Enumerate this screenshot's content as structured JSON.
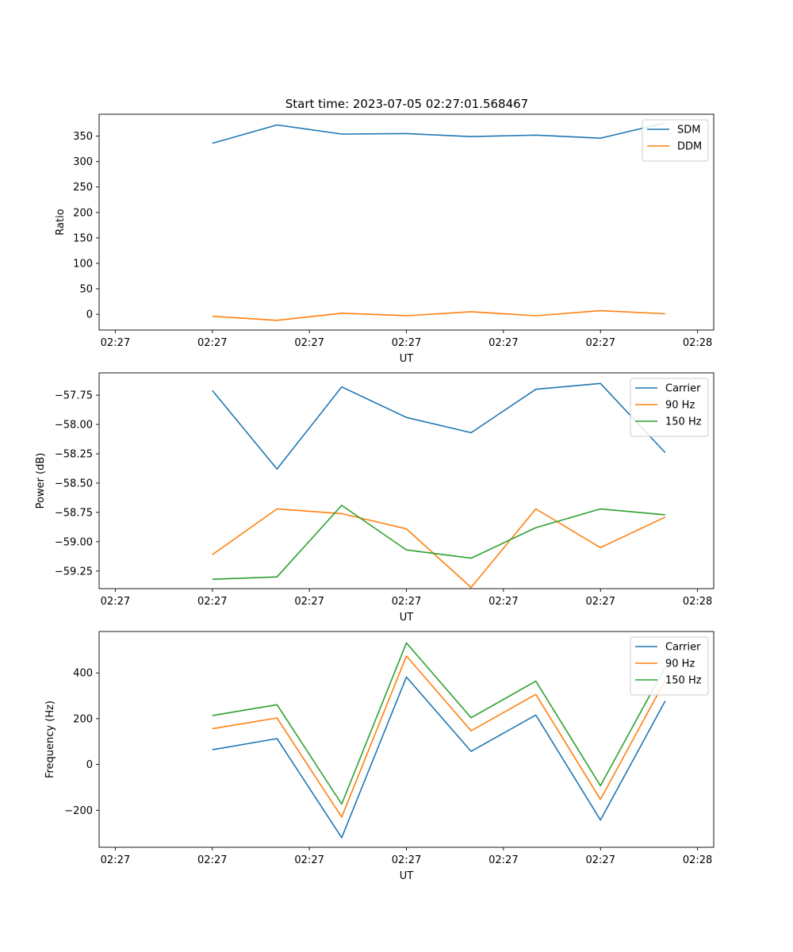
{
  "figure_title": "Start time: 2023-07-05 02:27:01.568467",
  "colors": {
    "c0": "#1f77b4",
    "c1": "#ff7f0e",
    "c2": "#2ca02c"
  },
  "chart_data": [
    {
      "type": "line",
      "title": "Start time: 2023-07-05 02:27:01.568467",
      "xlabel": "UT",
      "ylabel": "Ratio",
      "x": [
        1.0,
        2.0,
        3.0,
        4.0,
        5.0,
        6.0,
        7.0,
        8.0
      ],
      "xlim": [
        -0.75,
        8.75
      ],
      "xticks": [
        -0.5,
        1.0,
        2.5,
        4.0,
        5.5,
        7.0,
        8.5
      ],
      "xtick_labels": [
        "02:27",
        "02:27",
        "02:27",
        "02:27",
        "02:27",
        "02:27",
        "02:28"
      ],
      "ylim": [
        -31,
        393
      ],
      "yticks": [
        0,
        50,
        100,
        150,
        200,
        250,
        300,
        350
      ],
      "ytick_labels": [
        "0",
        "50",
        "100",
        "150",
        "200",
        "250",
        "300",
        "350"
      ],
      "legend": "top-right",
      "series": [
        {
          "name": "SDM",
          "color": "#1f77b4",
          "values": [
            336,
            372,
            354,
            355,
            349,
            352,
            346,
            376
          ]
        },
        {
          "name": "DDM",
          "color": "#ff7f0e",
          "values": [
            -4,
            -12,
            2,
            -3,
            5,
            -3,
            7,
            1
          ]
        }
      ]
    },
    {
      "type": "line",
      "title": "",
      "xlabel": "UT",
      "ylabel": "Power (dB)",
      "x": [
        1.0,
        2.0,
        3.0,
        4.0,
        5.0,
        6.0,
        7.0,
        8.0
      ],
      "xlim": [
        -0.75,
        8.75
      ],
      "xticks": [
        -0.5,
        1.0,
        2.5,
        4.0,
        5.5,
        7.0,
        8.5
      ],
      "xtick_labels": [
        "02:27",
        "02:27",
        "02:27",
        "02:27",
        "02:27",
        "02:27",
        "02:28"
      ],
      "ylim": [
        -59.4,
        -57.56
      ],
      "yticks": [
        -59.25,
        -59.0,
        -58.75,
        -58.5,
        -58.25,
        -58.0,
        -57.75
      ],
      "ytick_labels": [
        "−59.25",
        "−59.00",
        "−58.75",
        "−58.50",
        "−58.25",
        "−58.00",
        "−57.75"
      ],
      "legend": "top-right",
      "series": [
        {
          "name": "Carrier",
          "color": "#1f77b4",
          "values": [
            -57.71,
            -58.38,
            -57.68,
            -57.94,
            -58.07,
            -57.7,
            -57.65,
            -58.24
          ]
        },
        {
          "name": "90 Hz",
          "color": "#ff7f0e",
          "values": [
            -59.11,
            -58.72,
            -58.76,
            -58.89,
            -59.39,
            -58.72,
            -59.05,
            -58.79
          ]
        },
        {
          "name": "150 Hz",
          "color": "#2ca02c",
          "values": [
            -59.32,
            -59.3,
            -58.69,
            -59.07,
            -59.14,
            -58.88,
            -58.72,
            -58.77
          ]
        }
      ]
    },
    {
      "type": "line",
      "title": "",
      "xlabel": "UT",
      "ylabel": "Frequency (Hz)",
      "x": [
        1.0,
        2.0,
        3.0,
        4.0,
        5.0,
        6.0,
        7.0,
        8.0
      ],
      "xlim": [
        -0.75,
        8.75
      ],
      "xticks": [
        -0.5,
        1.0,
        2.5,
        4.0,
        5.5,
        7.0,
        8.5
      ],
      "xtick_labels": [
        "02:27",
        "02:27",
        "02:27",
        "02:27",
        "02:27",
        "02:27",
        "02:28"
      ],
      "ylim": [
        -362,
        581
      ],
      "yticks": [
        -200,
        0,
        200,
        400
      ],
      "ytick_labels": [
        "−200",
        "0",
        "200",
        "400"
      ],
      "legend": "top-right",
      "series": [
        {
          "name": "Carrier",
          "color": "#1f77b4",
          "values": [
            64,
            113,
            -320,
            382,
            57,
            216,
            -243,
            277
          ]
        },
        {
          "name": "90 Hz",
          "color": "#ff7f0e",
          "values": [
            156,
            203,
            -230,
            474,
            147,
            306,
            -153,
            367
          ]
        },
        {
          "name": "150 Hz",
          "color": "#2ca02c",
          "values": [
            214,
            261,
            -173,
            531,
            204,
            364,
            -93,
            425
          ]
        }
      ]
    }
  ]
}
